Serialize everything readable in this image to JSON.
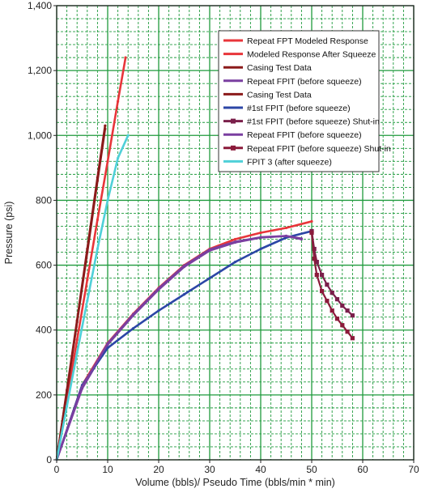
{
  "chart_data": {
    "type": "line",
    "xlabel": "Volume (bbls)/ Pseudo Time (bbls/min * min)",
    "ylabel": "Pressure (psi)",
    "xlim": [
      0,
      70
    ],
    "ylim": [
      0,
      1400
    ],
    "x_ticks": [
      0,
      10,
      20,
      30,
      40,
      50,
      60,
      70
    ],
    "y_ticks": [
      0,
      200,
      400,
      600,
      800,
      1000,
      1200,
      1400
    ],
    "x_tick_labels": [
      "0",
      "10",
      "20",
      "30",
      "40",
      "50",
      "60",
      "70"
    ],
    "y_tick_labels": [
      "0",
      "200",
      "400",
      "600",
      "800",
      "1,000",
      "1,200",
      "1,400"
    ],
    "grid": true,
    "plot_background": "#1f9a3c",
    "legend_position": "top-right",
    "series": [
      {
        "name": "Repeat FPT Modeled Response",
        "color": "#e8353a",
        "style": "line",
        "x": [
          0,
          5,
          10,
          15,
          20,
          25,
          30,
          35,
          40,
          45,
          50
        ],
        "y": [
          0,
          230,
          360,
          450,
          530,
          600,
          650,
          680,
          700,
          715,
          735
        ]
      },
      {
        "name": "Modeled Response After Squeeze",
        "color": "#e8353a",
        "style": "line",
        "x": [
          0,
          2,
          4,
          6,
          8,
          10,
          12,
          13.5
        ],
        "y": [
          0,
          185,
          370,
          555,
          740,
          920,
          1105,
          1240
        ]
      },
      {
        "name": "Casing Test Data",
        "color": "#8b1a1a",
        "style": "line",
        "x": [
          0,
          2,
          4,
          6,
          8,
          9.5
        ],
        "y": [
          0,
          215,
          430,
          650,
          870,
          1030
        ]
      },
      {
        "name": "Repeat FPIT (before squeeze)",
        "color": "#7a3fa0",
        "style": "line",
        "x": [
          0,
          5,
          10,
          15,
          20,
          25,
          30,
          35,
          40,
          45,
          48
        ],
        "y": [
          0,
          220,
          355,
          445,
          525,
          595,
          645,
          670,
          685,
          690,
          680
        ]
      },
      {
        "name": "Casing Test Data",
        "color": "#8b1a1a",
        "style": "line",
        "x": [
          0,
          2,
          4,
          6,
          8,
          9.5
        ],
        "y": [
          0,
          210,
          425,
          640,
          860,
          1020
        ]
      },
      {
        "name": "#1st FPIT (before squeeze)",
        "color": "#2c46a6",
        "style": "line",
        "x": [
          0,
          5,
          10,
          15,
          20,
          25,
          30,
          35,
          40,
          45,
          50
        ],
        "y": [
          0,
          230,
          345,
          405,
          460,
          510,
          560,
          610,
          650,
          685,
          705
        ]
      },
      {
        "name": "#1st FPIT (before squeeze) Shut-in",
        "color": "#7a1f4a",
        "style": "marker-line",
        "x": [
          50,
          50.5,
          51,
          52,
          53,
          54,
          55,
          56,
          57,
          58
        ],
        "y": [
          705,
          650,
          610,
          570,
          540,
          515,
          495,
          475,
          460,
          445
        ]
      },
      {
        "name": "Repeat FPIT (before squeeze)",
        "color": "#7a3fa0",
        "style": "line",
        "x": [
          0,
          5,
          10,
          15,
          20,
          25,
          30,
          35,
          40,
          45,
          48
        ],
        "y": [
          0,
          225,
          358,
          448,
          528,
          598,
          648,
          672,
          686,
          690,
          682
        ]
      },
      {
        "name": "Repeat FPIT (before squeeze) Shut-in",
        "color": "#8b1a3a",
        "style": "marker-line",
        "x": [
          50,
          50.5,
          51,
          52,
          53,
          54,
          55,
          56,
          57,
          58
        ],
        "y": [
          700,
          620,
          570,
          520,
          490,
          460,
          435,
          415,
          395,
          375
        ]
      },
      {
        "name": "FPIT 3 (after squeeze)",
        "color": "#4fd0d8",
        "style": "line",
        "x": [
          0,
          2,
          4,
          6,
          8,
          10,
          12,
          14
        ],
        "y": [
          0,
          165,
          330,
          490,
          650,
          800,
          930,
          1000
        ]
      }
    ]
  }
}
